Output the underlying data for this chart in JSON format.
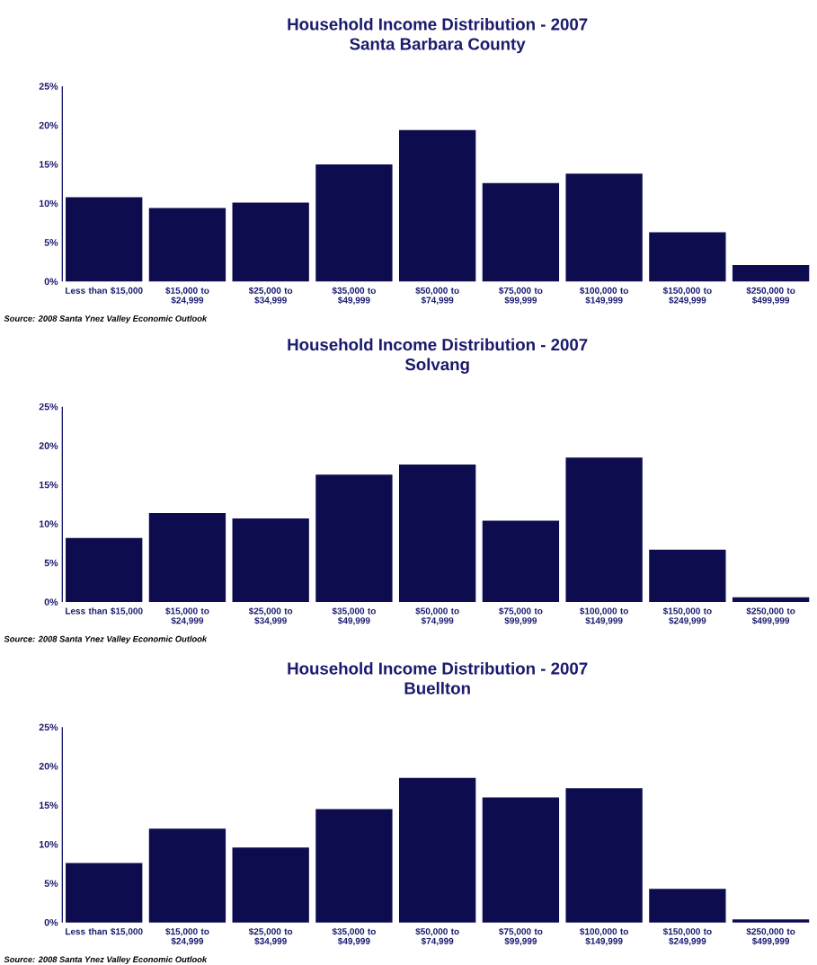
{
  "chart_data": [
    {
      "type": "bar",
      "title": "Household Income Distribution - 2007",
      "subtitle": "Santa Barbara County",
      "categories": [
        "Less than $15,000",
        "$15,000 to $24,999",
        "$25,000 to $34,999",
        "$35,000 to $49,999",
        "$50,000 to $74,999",
        "$75,000 to $99,999",
        "$100,000 to $149,999",
        "$150,000 to $249,999",
        "$250,000 to $499,999"
      ],
      "values": [
        10.8,
        9.4,
        10.1,
        15.0,
        19.4,
        12.6,
        13.8,
        6.3,
        2.1
      ],
      "color": "#0c0c4e",
      "ylim": [
        0,
        25
      ],
      "yticks": [
        {
          "value": 0,
          "label": "0%"
        },
        {
          "value": 5,
          "label": "5%"
        },
        {
          "value": 10,
          "label": "10%"
        },
        {
          "value": 15,
          "label": "15%"
        },
        {
          "value": 20,
          "label": "20%"
        },
        {
          "value": 25,
          "label": "25%"
        }
      ],
      "annotations": [
        "Source: 2008 Santa Ynez Valley Economic Outlook"
      ]
    },
    {
      "type": "bar",
      "title": "Household Income Distribution - 2007",
      "subtitle": "Solvang",
      "categories": [
        "Less than $15,000",
        "$15,000 to $24,999",
        "$25,000 to $34,999",
        "$35,000 to $49,999",
        "$50,000 to $74,999",
        "$75,000 to $99,999",
        "$100,000 to $149,999",
        "$150,000 to $249,999",
        "$250,000 to $499,999"
      ],
      "values": [
        8.2,
        11.4,
        10.7,
        16.3,
        17.6,
        10.4,
        18.5,
        6.7,
        0.6
      ],
      "color": "#0c0c4e",
      "ylim": [
        0,
        25
      ],
      "yticks": [
        {
          "value": 0,
          "label": "0%"
        },
        {
          "value": 5,
          "label": "5%"
        },
        {
          "value": 10,
          "label": "10%"
        },
        {
          "value": 15,
          "label": "15%"
        },
        {
          "value": 20,
          "label": "20%"
        },
        {
          "value": 25,
          "label": "25%"
        }
      ],
      "annotations": [
        "Source: 2008 Santa Ynez Valley Economic Outlook"
      ]
    },
    {
      "type": "bar",
      "title": "Household Income Distribution - 2007",
      "subtitle": "Buellton",
      "categories": [
        "Less than $15,000",
        "$15,000 to $24,999",
        "$25,000 to $34,999",
        "$35,000 to $49,999",
        "$50,000 to $74,999",
        "$75,000 to $99,999",
        "$100,000 to $149,999",
        "$150,000 to $249,999",
        "$250,000 to $499,999"
      ],
      "values": [
        7.6,
        12.0,
        9.6,
        14.5,
        18.5,
        16.0,
        17.2,
        4.3,
        0.4
      ],
      "color": "#0c0c4e",
      "ylim": [
        0,
        25
      ],
      "yticks": [
        {
          "value": 0,
          "label": "0%"
        },
        {
          "value": 5,
          "label": "5%"
        },
        {
          "value": 10,
          "label": "10%"
        },
        {
          "value": 15,
          "label": "15%"
        },
        {
          "value": 20,
          "label": "20%"
        },
        {
          "value": 25,
          "label": "25%"
        }
      ],
      "annotations": [
        "Source: 2008 Santa Ynez Valley Economic Outlook"
      ]
    }
  ]
}
